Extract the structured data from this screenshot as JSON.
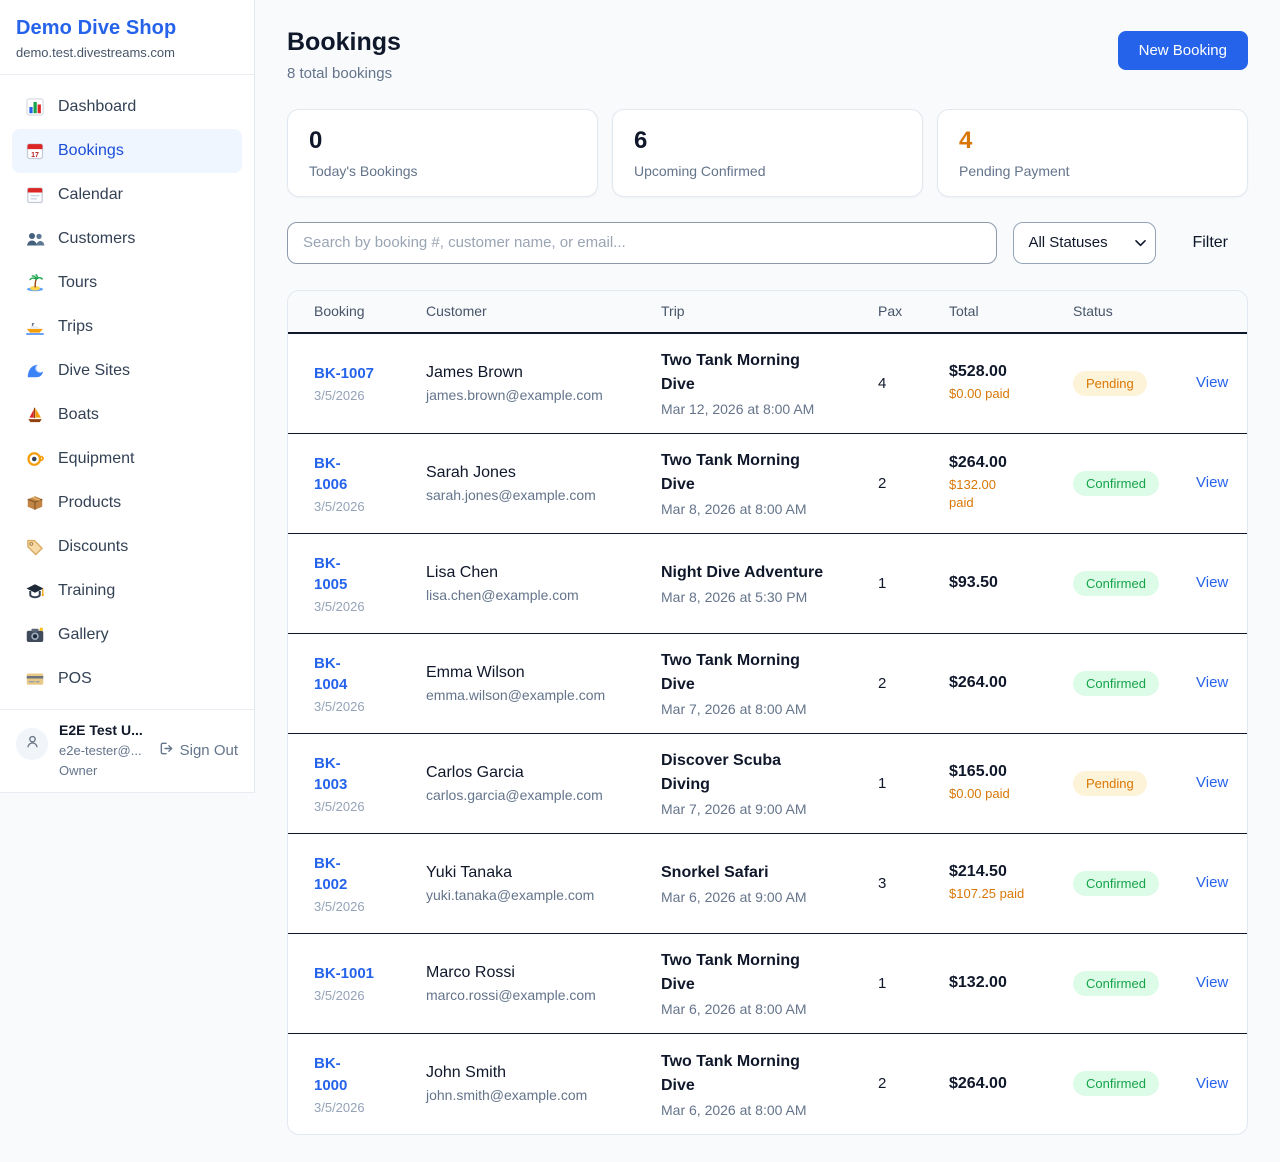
{
  "shop": {
    "name": "Demo Dive Shop",
    "domain": "demo.test.divestreams.com"
  },
  "sidebar": {
    "items": [
      {
        "label": "Dashboard",
        "icon": "bar-chart-icon",
        "active": false
      },
      {
        "label": "Bookings",
        "icon": "calendar-date-icon",
        "active": true
      },
      {
        "label": "Calendar",
        "icon": "tear-off-calendar-icon",
        "active": false
      },
      {
        "label": "Customers",
        "icon": "people-icon",
        "active": false
      },
      {
        "label": "Tours",
        "icon": "island-icon",
        "active": false
      },
      {
        "label": "Trips",
        "icon": "speedboat-icon",
        "active": false
      },
      {
        "label": "Dive Sites",
        "icon": "wave-icon",
        "active": false
      },
      {
        "label": "Boats",
        "icon": "sailboat-icon",
        "active": false
      },
      {
        "label": "Equipment",
        "icon": "diving-mask-icon",
        "active": false
      },
      {
        "label": "Products",
        "icon": "package-icon",
        "active": false
      },
      {
        "label": "Discounts",
        "icon": "tag-icon",
        "active": false
      },
      {
        "label": "Training",
        "icon": "graduation-cap-icon",
        "active": false
      },
      {
        "label": "Gallery",
        "icon": "camera-icon",
        "active": false
      },
      {
        "label": "POS",
        "icon": "credit-card-icon",
        "active": false
      }
    ],
    "user": {
      "name": "E2E Test U...",
      "email": "e2e-tester@...",
      "role": "Owner",
      "sign_out_label": "Sign Out"
    }
  },
  "header": {
    "title": "Bookings",
    "subtitle": "8 total bookings",
    "new_booking_label": "New Booking"
  },
  "stats": [
    {
      "value": "0",
      "label": "Today's Bookings"
    },
    {
      "value": "6",
      "label": "Upcoming Confirmed"
    },
    {
      "value": "4",
      "label": "Pending Payment",
      "value_color": "#d97706"
    }
  ],
  "filters": {
    "search_placeholder": "Search by booking #, customer name, or email...",
    "status_value": "All Statuses",
    "filter_label": "Filter"
  },
  "table": {
    "columns": [
      "Booking",
      "Customer",
      "Trip",
      "Pax",
      "Total",
      "Status"
    ],
    "view_label": "View",
    "rows": [
      {
        "id": "BK-1007",
        "id_wrap": false,
        "date": "3/5/2026",
        "name": "James Brown",
        "email": "james.brown@example.com",
        "trip": "Two Tank Morning\nDive",
        "time": "Mar 12, 2026 at 8:00 AM",
        "pax": "4",
        "total": "$528.00",
        "paid": "$0.00 paid",
        "paid_wrap": false,
        "status": "Pending"
      },
      {
        "id": "BK-1006",
        "id_wrap": true,
        "date": "3/5/2026",
        "name": "Sarah Jones",
        "email": "sarah.jones@example.com",
        "trip": "Two Tank Morning\nDive",
        "time": "Mar 8, 2026 at 8:00 AM",
        "pax": "2",
        "total": "$264.00",
        "paid": "$132.00 paid",
        "paid_wrap": true,
        "status": "Confirmed"
      },
      {
        "id": "BK-1005",
        "id_wrap": true,
        "date": "3/5/2026",
        "name": "Lisa Chen",
        "email": "lisa.chen@example.com",
        "trip": "Night Dive Adventure",
        "time": "Mar 8, 2026 at 5:30 PM",
        "pax": "1",
        "total": "$93.50",
        "paid": "",
        "paid_wrap": false,
        "status": "Confirmed"
      },
      {
        "id": "BK-1004",
        "id_wrap": true,
        "date": "3/5/2026",
        "name": "Emma Wilson",
        "email": "emma.wilson@example.com",
        "trip": "Two Tank Morning\nDive",
        "time": "Mar 7, 2026 at 8:00 AM",
        "pax": "2",
        "total": "$264.00",
        "paid": "",
        "paid_wrap": false,
        "status": "Confirmed"
      },
      {
        "id": "BK-1003",
        "id_wrap": true,
        "date": "3/5/2026",
        "name": "Carlos Garcia",
        "email": "carlos.garcia@example.com",
        "trip": "Discover Scuba\nDiving",
        "time": "Mar 7, 2026 at 9:00 AM",
        "pax": "1",
        "total": "$165.00",
        "paid": "$0.00 paid",
        "paid_wrap": false,
        "status": "Pending"
      },
      {
        "id": "BK-1002",
        "id_wrap": true,
        "date": "3/5/2026",
        "name": "Yuki Tanaka",
        "email": "yuki.tanaka@example.com",
        "trip": "Snorkel Safari",
        "time": "Mar 6, 2026 at 9:00 AM",
        "pax": "3",
        "total": "$214.50",
        "paid": "$107.25 paid",
        "paid_wrap": false,
        "status": "Confirmed"
      },
      {
        "id": "BK-1001",
        "id_wrap": false,
        "date": "3/5/2026",
        "name": "Marco Rossi",
        "email": "marco.rossi@example.com",
        "trip": "Two Tank Morning\nDive",
        "time": "Mar 6, 2026 at 8:00 AM",
        "pax": "1",
        "total": "$132.00",
        "paid": "",
        "paid_wrap": false,
        "status": "Confirmed"
      },
      {
        "id": "BK-1000",
        "id_wrap": true,
        "date": "3/5/2026",
        "name": "John Smith",
        "email": "john.smith@example.com",
        "trip": "Two Tank Morning\nDive",
        "time": "Mar 6, 2026 at 8:00 AM",
        "pax": "2",
        "total": "$264.00",
        "paid": "",
        "paid_wrap": false,
        "status": "Confirmed"
      }
    ]
  },
  "colors": {
    "accent": "#2563eb",
    "pending_text": "#d97706",
    "pending_badge_bg": "#fdf3d9",
    "confirmed_text": "#16a34a",
    "confirmed_badge_bg": "#dcfce7",
    "sidebar_active_bg": "#eff6ff",
    "page_bg": "#f8fafc"
  }
}
